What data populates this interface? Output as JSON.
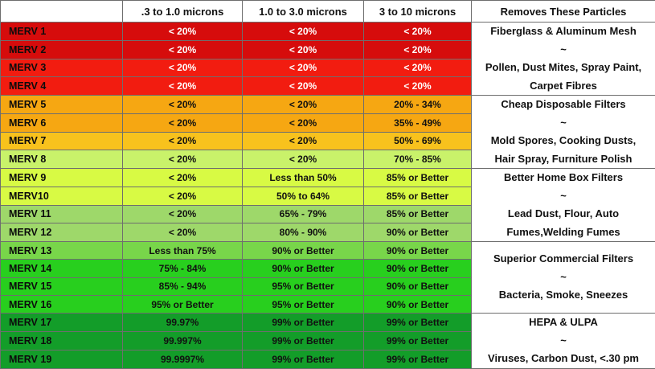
{
  "headers": [
    "",
    ".3 to 1.0 microns",
    "1.0 to 3.0 microns",
    "3  to 10 microns",
    "Removes These Particles"
  ],
  "rows": [
    {
      "merv": "MERV  1",
      "a": "< 20%",
      "b": "< 20%",
      "c": "< 20%",
      "color": "#d60c0c",
      "text": "white"
    },
    {
      "merv": "MERV 2",
      "a": "< 20%",
      "b": "< 20%",
      "c": "< 20%",
      "color": "#d60c0c",
      "text": "white"
    },
    {
      "merv": "MERV 3",
      "a": "< 20%",
      "b": "< 20%",
      "c": "< 20%",
      "color": "#f21c10",
      "text": "white"
    },
    {
      "merv": "MERV 4",
      "a": "< 20%",
      "b": "< 20%",
      "c": "< 20%",
      "color": "#f21c10",
      "text": "white"
    },
    {
      "merv": "MERV 5",
      "a": "< 20%",
      "b": "< 20%",
      "c": "20% - 34%",
      "color": "#f6a712",
      "text": "dark"
    },
    {
      "merv": "MERV 6",
      "a": "< 20%",
      "b": "< 20%",
      "c": "35% - 49%",
      "color": "#f6a712",
      "text": "dark"
    },
    {
      "merv": "MERV 7",
      "a": "< 20%",
      "b": "< 20%",
      "c": "50% - 69%",
      "color": "#f8c21d",
      "text": "dark"
    },
    {
      "merv": "MERV 8",
      "a": "< 20%",
      "b": "< 20%",
      "c": "70% - 85%",
      "color": "#c9f26a",
      "text": "dark"
    },
    {
      "merv": "MERV 9",
      "a": "< 20%",
      "b": "Less than 50%",
      "c": "85% or Better",
      "color": "#d8fa44",
      "text": "dark"
    },
    {
      "merv": "MERV10",
      "a": "< 20%",
      "b": "50% to 64%",
      "c": "85% or Better",
      "color": "#d8fa44",
      "text": "dark"
    },
    {
      "merv": "MERV 11",
      "a": "< 20%",
      "b": "65% - 79%",
      "c": "85% or Better",
      "color": "#9ed86a",
      "text": "dark"
    },
    {
      "merv": "MERV 12",
      "a": "< 20%",
      "b": "80% - 90%",
      "c": "90% or Better",
      "color": "#9ed86a",
      "text": "dark"
    },
    {
      "merv": "MERV 13",
      "a": "Less than 75%",
      "b": "90% or Better",
      "c": "90% or Better",
      "color": "#78d64a",
      "text": "dark"
    },
    {
      "merv": "MERV 14",
      "a": "75% - 84%",
      "b": "90% or Better",
      "c": "90% or Better",
      "color": "#28cf1e",
      "text": "dark"
    },
    {
      "merv": "MERV 15",
      "a": "85% - 94%",
      "b": "95% or Better",
      "c": "90% or Better",
      "color": "#28cf1e",
      "text": "dark"
    },
    {
      "merv": "MERV 16",
      "a": "95% or Better",
      "b": "95% or Better",
      "c": "90% or Better",
      "color": "#28cf1e",
      "text": "dark"
    },
    {
      "merv": "MERV 17",
      "a": "99.97%",
      "b": "99% or Better",
      "c": "99% or Better",
      "color": "#139d29",
      "text": "dark"
    },
    {
      "merv": "MERV 18",
      "a": "99.997%",
      "b": "99% or Better",
      "c": "99% or Better",
      "color": "#139d29",
      "text": "dark"
    },
    {
      "merv": "MERV 19",
      "a": "99.9997%",
      "b": "99% or Better",
      "c": "99% or Better",
      "color": "#139d29",
      "text": "dark"
    }
  ],
  "removes": [
    [
      "Fiberglass & Aluminum Mesh",
      "~",
      "Pollen, Dust Mites, Spray Paint,",
      "Carpet Fibres"
    ],
    [
      "Cheap Disposable Filters",
      "~",
      "Mold Spores, Cooking Dusts,",
      "Hair Spray, Furniture Polish"
    ],
    [
      "Better Home Box Filters",
      "~",
      "Lead Dust, Flour, Auto",
      "Fumes,Welding Fumes"
    ],
    [
      "Superior Commercial Filters",
      "~",
      "Bacteria, Smoke, Sneezes"
    ],
    [
      "HEPA &  ULPA",
      "~",
      "Viruses,  Carbon Dust, <.30 pm"
    ]
  ]
}
